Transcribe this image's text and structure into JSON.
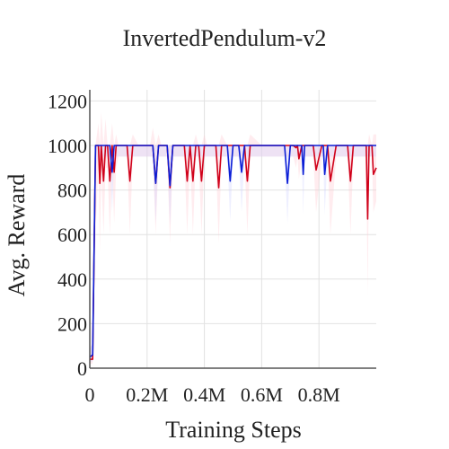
{
  "chart_data": {
    "type": "line",
    "title": "InvertedPendulum-v2",
    "xlabel": "Training Steps",
    "ylabel": "Avg. Reward",
    "xlim": [
      0,
      1000000
    ],
    "ylim": [
      0,
      1250
    ],
    "x_ticks": [
      0,
      200000,
      400000,
      600000,
      800000
    ],
    "x_tick_labels": [
      "0",
      "0.2M",
      "0.4M",
      "0.6M",
      "0.8M"
    ],
    "y_ticks": [
      0,
      200,
      400,
      600,
      800,
      1000,
      1200
    ],
    "y_tick_labels": [
      "0",
      "200",
      "400",
      "600",
      "800",
      "1000",
      "1200"
    ],
    "grid": true,
    "legend": "none",
    "series": [
      {
        "color": "#d0021b",
        "band_color": "#ffc8d2",
        "x": [
          0,
          10000,
          20000,
          30000,
          35000,
          40000,
          48000,
          55000,
          62000,
          70000,
          78000,
          85000,
          92000,
          100000,
          110000,
          130000,
          140000,
          150000,
          170000,
          180000,
          190000,
          210000,
          220000,
          230000,
          240000,
          250000,
          270000,
          280000,
          290000,
          330000,
          340000,
          350000,
          360000,
          370000,
          380000,
          390000,
          400000,
          410000,
          420000,
          440000,
          450000,
          460000,
          480000,
          500000,
          510000,
          520000,
          540000,
          550000,
          560000,
          600000,
          700000,
          710000,
          720000,
          725000,
          730000,
          740000,
          750000,
          770000,
          780000,
          790000,
          810000,
          820000,
          830000,
          840000,
          860000,
          900000,
          910000,
          920000,
          960000,
          965000,
          970000,
          975000,
          985000,
          990000,
          1000000
        ],
        "y": [
          40,
          40,
          1000,
          1000,
          830,
          1000,
          840,
          1000,
          1000,
          840,
          1000,
          880,
          1000,
          1000,
          1000,
          1000,
          840,
          1000,
          1000,
          1000,
          1000,
          1000,
          1000,
          830,
          1000,
          1000,
          1000,
          810,
          1000,
          1000,
          840,
          1000,
          840,
          1000,
          1000,
          840,
          1000,
          1000,
          1000,
          1000,
          810,
          1000,
          1000,
          1000,
          1000,
          1000,
          1000,
          840,
          1000,
          1000,
          1000,
          1000,
          990,
          1000,
          940,
          1000,
          1000,
          1000,
          1000,
          890,
          1000,
          1000,
          1000,
          840,
          1000,
          1000,
          840,
          1000,
          1000,
          1000,
          670,
          1000,
          1000,
          870,
          900
        ],
        "upper": [
          80,
          120,
          1000,
          1100,
          1000,
          1150,
          1000,
          1120,
          1000,
          1000,
          1100,
          1000,
          1050,
          1000,
          1000,
          1000,
          1000,
          1050,
          1000,
          1000,
          1000,
          1000,
          1080,
          1000,
          1050,
          1000,
          1000,
          1000,
          1000,
          1000,
          1000,
          1000,
          1000,
          1050,
          1000,
          1000,
          1050,
          1000,
          1000,
          1000,
          1000,
          1050,
          1000,
          1000,
          1000,
          1000,
          1000,
          1000,
          1050,
          1000,
          1000,
          1000,
          1000,
          1000,
          1000,
          1000,
          1000,
          1000,
          1000,
          1000,
          1000,
          1000,
          1000,
          1000,
          1000,
          1000,
          1000,
          1000,
          1000,
          1000,
          1000,
          1050,
          1000,
          1050,
          1050
        ],
        "lower": [
          20,
          20,
          600,
          900,
          520,
          880,
          600,
          900,
          900,
          600,
          900,
          650,
          900,
          950,
          950,
          950,
          600,
          950,
          950,
          950,
          950,
          950,
          950,
          600,
          950,
          950,
          950,
          560,
          950,
          950,
          600,
          950,
          600,
          950,
          950,
          600,
          950,
          950,
          950,
          950,
          560,
          950,
          950,
          950,
          950,
          950,
          950,
          600,
          950,
          950,
          950,
          950,
          900,
          950,
          850,
          950,
          950,
          950,
          950,
          700,
          950,
          950,
          950,
          600,
          950,
          950,
          600,
          950,
          950,
          950,
          330,
          950,
          950,
          700,
          750
        ]
      },
      {
        "color": "#0b1ed6",
        "band_color": "#cdd2ff",
        "x": [
          0,
          10000,
          20000,
          30000,
          70000,
          78000,
          85000,
          200000,
          220000,
          230000,
          240000,
          270000,
          280000,
          290000,
          480000,
          490000,
          500000,
          520000,
          530000,
          540000,
          680000,
          690000,
          700000,
          740000,
          745000,
          750000,
          800000,
          815000,
          820000,
          830000,
          840000,
          1000000
        ],
        "y": [
          50,
          60,
          1000,
          1000,
          1000,
          880,
          1000,
          1000,
          1000,
          830,
          1000,
          1000,
          820,
          1000,
          1000,
          840,
          1000,
          1000,
          880,
          1000,
          1000,
          830,
          1000,
          1000,
          870,
          1000,
          1000,
          1000,
          870,
          1000,
          1000,
          1000
        ],
        "upper": [
          90,
          110,
          1000,
          1000,
          1000,
          1000,
          1000,
          1000,
          1000,
          1000,
          1000,
          1000,
          1000,
          1000,
          1000,
          1000,
          1000,
          1000,
          1000,
          1000,
          1000,
          1000,
          1000,
          1000,
          1000,
          1000,
          1000,
          1000,
          1000,
          1000,
          1000,
          1000
        ],
        "lower": [
          30,
          30,
          900,
          950,
          950,
          700,
          950,
          950,
          950,
          650,
          950,
          950,
          640,
          950,
          950,
          660,
          950,
          950,
          700,
          950,
          950,
          650,
          950,
          950,
          690,
          950,
          950,
          950,
          690,
          950,
          950,
          950
        ]
      }
    ]
  }
}
